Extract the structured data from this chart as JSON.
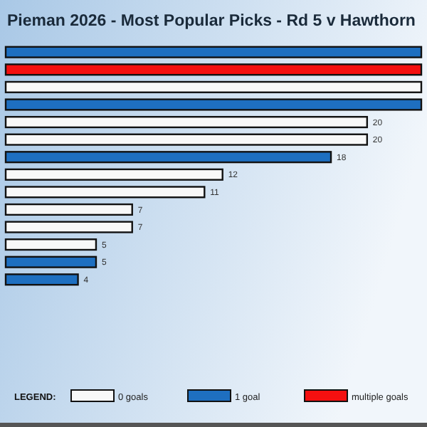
{
  "chart_data": {
    "type": "bar",
    "orientation": "horizontal",
    "stacked": true,
    "title": "Pieman 2026 - Most Popular Picks - Rd 5 v Hawthorn",
    "categories": [
      null,
      null,
      null,
      null,
      null,
      null,
      null,
      null,
      null,
      null,
      null,
      null,
      null,
      null
    ],
    "series": [
      {
        "name": "0 goals",
        "color": "#f8f8f8",
        "values": [
          null,
          null,
          23,
          null,
          20,
          20,
          null,
          12,
          11,
          7,
          7,
          5,
          null,
          null
        ],
        "value_labels": [
          null,
          null,
          null,
          null,
          "20",
          "20",
          null,
          "12",
          "11",
          "7",
          "7",
          "5",
          null,
          null
        ]
      },
      {
        "name": "1 goal",
        "color": "#1e6fc0",
        "values": [
          23,
          null,
          null,
          23,
          null,
          null,
          18,
          null,
          null,
          null,
          null,
          null,
          5,
          4
        ],
        "value_labels": [
          null,
          null,
          null,
          null,
          null,
          null,
          "18",
          null,
          null,
          null,
          null,
          null,
          "5",
          "4"
        ]
      },
      {
        "name": "multiple goals",
        "color": "#f41010",
        "values": [
          null,
          23,
          null,
          null,
          null,
          null,
          null,
          null,
          null,
          null,
          null,
          null,
          null,
          null
        ]
      }
    ],
    "legend": "bottom",
    "legend_title": "LEGEND:"
  }
}
